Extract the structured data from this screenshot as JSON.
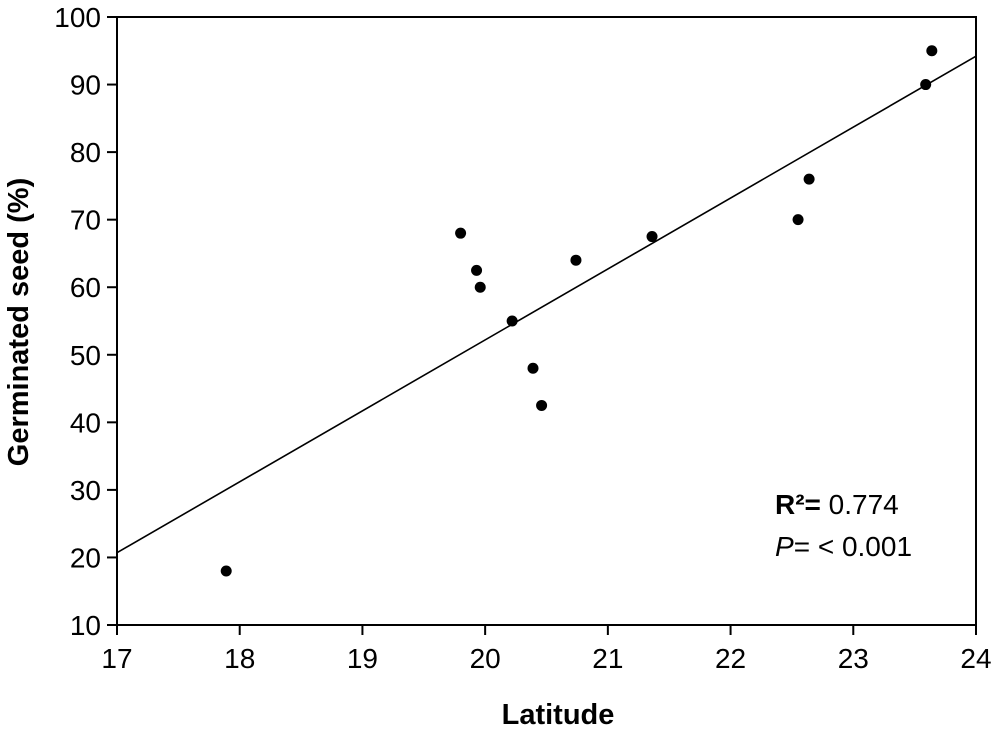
{
  "chart_data": {
    "type": "scatter",
    "xlabel": "Latitude",
    "ylabel": "Germinated seed (%)",
    "xlim": [
      17,
      24
    ],
    "ylim": [
      10,
      100
    ],
    "xticks": [
      17,
      18,
      19,
      20,
      21,
      22,
      23,
      24
    ],
    "yticks": [
      10,
      20,
      30,
      40,
      50,
      60,
      70,
      80,
      90,
      100
    ],
    "grid": false,
    "legend": "none",
    "points": [
      {
        "x": 17.89,
        "y": 18
      },
      {
        "x": 19.8,
        "y": 68
      },
      {
        "x": 19.93,
        "y": 62.5
      },
      {
        "x": 19.96,
        "y": 60
      },
      {
        "x": 20.22,
        "y": 55
      },
      {
        "x": 20.39,
        "y": 48
      },
      {
        "x": 20.46,
        "y": 42.5
      },
      {
        "x": 20.74,
        "y": 64
      },
      {
        "x": 21.36,
        "y": 67.5
      },
      {
        "x": 22.55,
        "y": 70
      },
      {
        "x": 22.64,
        "y": 76
      },
      {
        "x": 23.59,
        "y": 90
      },
      {
        "x": 23.64,
        "y": 95
      }
    ],
    "regression_line": {
      "x": [
        17,
        24
      ],
      "y": [
        20.7,
        94.2
      ]
    },
    "annotations": {
      "r2_label": "R²=",
      "r2_value": " 0.774",
      "p_label": "P",
      "p_value": "= < 0.001"
    }
  }
}
